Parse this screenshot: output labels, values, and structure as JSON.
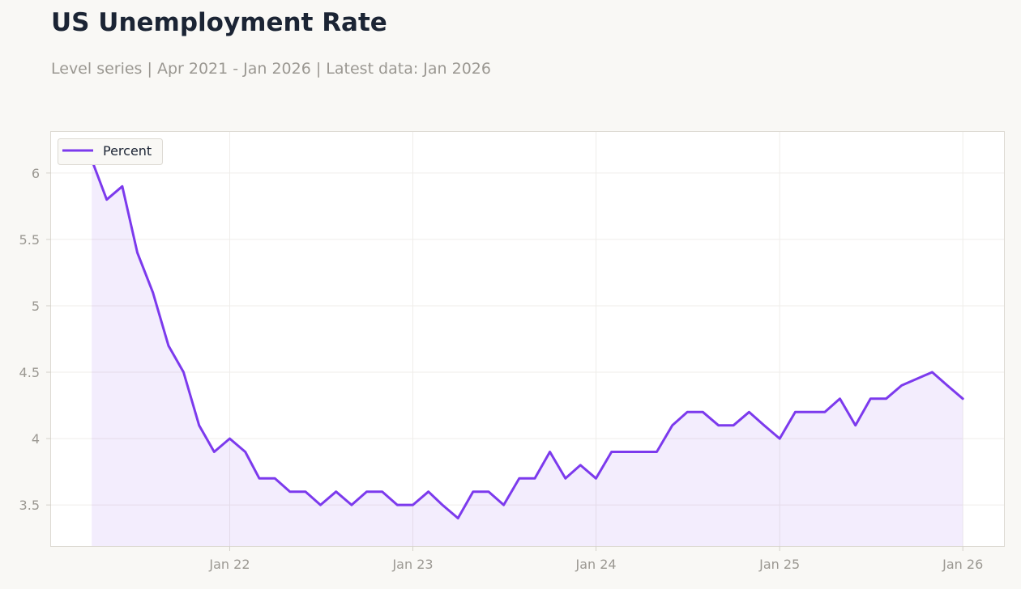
{
  "chart_data": {
    "type": "area",
    "title": "US Unemployment Rate",
    "subtitle": "Level series | Apr 2021 - Jan 2026 | Latest data: Jan 2026",
    "legend_position": "top-left",
    "grid": true,
    "ylim": [
      3.19,
      6.31
    ],
    "xlim": [
      "2021-01-10",
      "2026-03-24"
    ],
    "y_ticks": [
      3.5,
      4,
      4.5,
      5,
      5.5,
      6
    ],
    "y_tick_labels": [
      "3.5",
      "4",
      "4.5",
      "5",
      "5.5",
      "6"
    ],
    "x_ticks": [
      "2022-01-01",
      "2023-01-01",
      "2024-01-01",
      "2025-01-01",
      "2026-01-01"
    ],
    "x_tick_labels": [
      "Jan 22",
      "Jan 23",
      "Jan 24",
      "Jan 25",
      "Jan 26"
    ],
    "colors": {
      "line": "#7c3aed",
      "fill": "#7c3aed"
    },
    "series": [
      {
        "name": "Percent",
        "x": [
          "2021-04",
          "2021-05",
          "2021-06",
          "2021-07",
          "2021-08",
          "2021-09",
          "2021-10",
          "2021-11",
          "2021-12",
          "2022-01",
          "2022-02",
          "2022-03",
          "2022-04",
          "2022-05",
          "2022-06",
          "2022-07",
          "2022-08",
          "2022-09",
          "2022-10",
          "2022-11",
          "2022-12",
          "2023-01",
          "2023-02",
          "2023-03",
          "2023-04",
          "2023-05",
          "2023-06",
          "2023-07",
          "2023-08",
          "2023-09",
          "2023-10",
          "2023-11",
          "2023-12",
          "2024-01",
          "2024-02",
          "2024-03",
          "2024-04",
          "2024-05",
          "2024-06",
          "2024-07",
          "2024-08",
          "2024-09",
          "2024-10",
          "2024-11",
          "2024-12",
          "2025-01",
          "2025-02",
          "2025-03",
          "2025-04",
          "2025-05",
          "2025-06",
          "2025-07",
          "2025-08",
          "2025-09",
          "2025-11",
          "2025-12",
          "2026-01"
        ],
        "values": [
          6.1,
          5.8,
          5.9,
          5.4,
          5.1,
          4.7,
          4.5,
          4.1,
          3.9,
          4.0,
          3.9,
          3.7,
          3.7,
          3.6,
          3.6,
          3.5,
          3.6,
          3.5,
          3.6,
          3.6,
          3.5,
          3.5,
          3.6,
          3.5,
          3.4,
          3.6,
          3.6,
          3.5,
          3.7,
          3.7,
          3.9,
          3.7,
          3.8,
          3.7,
          3.9,
          3.9,
          3.9,
          3.9,
          4.1,
          4.2,
          4.2,
          4.1,
          4.1,
          4.2,
          4.1,
          4.0,
          4.2,
          4.2,
          4.2,
          4.3,
          4.1,
          4.3,
          4.3,
          4.4,
          4.5,
          4.4,
          4.3
        ]
      }
    ]
  }
}
